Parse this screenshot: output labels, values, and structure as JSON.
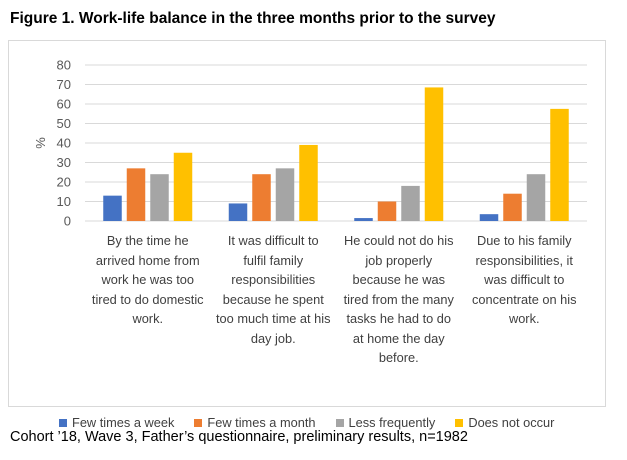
{
  "figure_title": "Figure 1. Work-life balance in the three months prior to the survey",
  "caption": "Cohort ’18, Wave 3, Father’s questionnaire, preliminary results, n=1982",
  "colors": {
    "Few times a week": "#4472C4",
    "Few times a month": "#ED7D31",
    "Less frequently": "#A5A5A5",
    "Does not occur": "#FFC000",
    "grid": "#d9d9d9"
  },
  "chart_data": {
    "type": "bar",
    "title": "",
    "xlabel": "",
    "ylabel": "%",
    "ylim": [
      0,
      80
    ],
    "yticks": [
      0,
      10,
      20,
      30,
      40,
      50,
      60,
      70,
      80
    ],
    "grid": true,
    "legend_position": "bottom",
    "categories": [
      "By the time he arrived home from work he was too tired to do domestic work.",
      "It was difficult to fulfil family responsibilities because he spent too much time at his day job.",
      "He could not do his job properly because he was tired from the many tasks he had to do at home the day before.",
      "Due to his family responsibilities, it was difficult to concentrate on his work."
    ],
    "series": [
      {
        "name": "Few times a week",
        "values": [
          13,
          9,
          1.5,
          3.5
        ]
      },
      {
        "name": "Few times a month",
        "values": [
          27,
          24,
          10,
          14
        ]
      },
      {
        "name": "Less frequently",
        "values": [
          24,
          27,
          18,
          24
        ]
      },
      {
        "name": "Does not occur",
        "values": [
          35,
          39,
          68.5,
          57.5
        ]
      }
    ]
  }
}
